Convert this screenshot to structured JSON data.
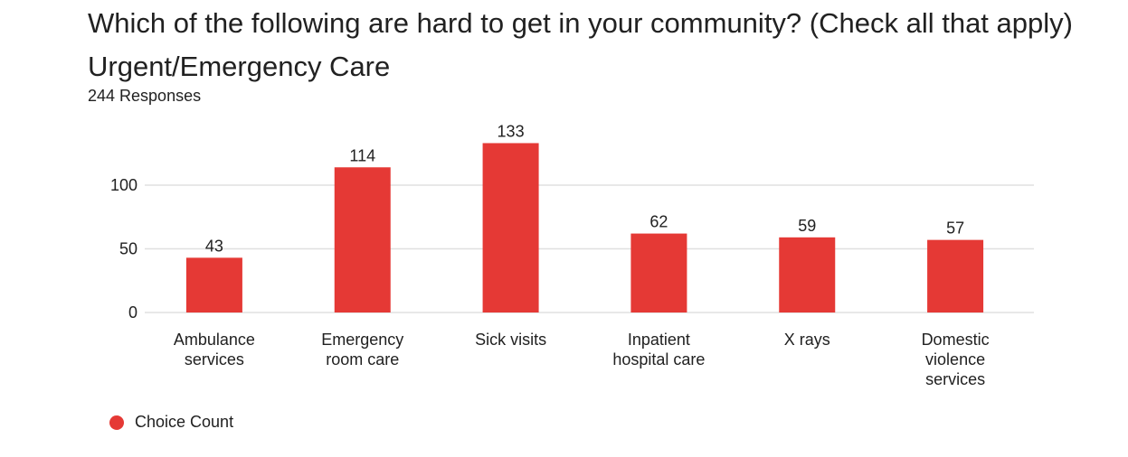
{
  "title": "Which of the following are hard to get in your community? (Check all that apply) Urgent/Emergency Care",
  "subtitle": "244 Responses",
  "colors": {
    "bar": "#e53935",
    "grid": "#e0e0e0",
    "text": "#212121"
  },
  "chart_data": {
    "type": "bar",
    "categories": [
      [
        "Ambulance",
        "services"
      ],
      [
        "Emergency",
        "room care"
      ],
      [
        "Sick visits"
      ],
      [
        "Inpatient",
        "hospital care"
      ],
      [
        "X rays"
      ],
      [
        "Domestic",
        "violence",
        "services"
      ]
    ],
    "series": [
      {
        "name": "Choice Count",
        "values": [
          43,
          114,
          133,
          62,
          59,
          57
        ]
      }
    ],
    "data_labels": [
      "43",
      "114",
      "133",
      "62",
      "59",
      "57"
    ],
    "yticks": [
      0,
      50,
      100
    ],
    "ytick_labels": [
      "0",
      "50",
      "100"
    ],
    "ylim": [
      0,
      150
    ],
    "grid": true,
    "legend_position": "bottom-left"
  }
}
